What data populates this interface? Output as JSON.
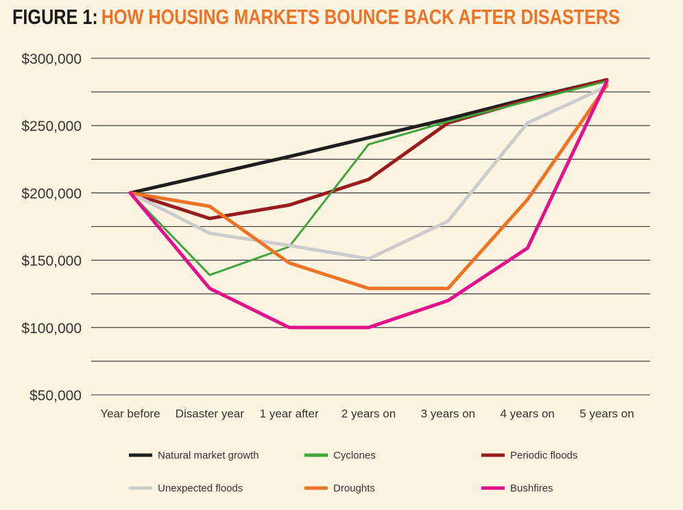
{
  "figure_label": "FIGURE 1:",
  "title": "HOW HOUSING MARKETS BOUNCE BACK AFTER DISASTERS",
  "colors": {
    "background": "#fdf3e1",
    "title_label": "#1a1a1a",
    "title_accent": "#ee7326",
    "gridline": "#2b2b2b",
    "tick_text": "#333333"
  },
  "chart_data": {
    "type": "line",
    "title": "HOW HOUSING MARKETS BOUNCE BACK AFTER DISASTERS",
    "xlabel": "",
    "ylabel": "",
    "categories": [
      "Year before",
      "Disaster year",
      "1 year after",
      "2 years on",
      "3 years on",
      "4 years on",
      "5 years on"
    ],
    "y_ticks": [
      {
        "value": 50000,
        "label": "$50,000"
      },
      {
        "value": 100000,
        "label": "$100,000"
      },
      {
        "value": 150000,
        "label": "$150,000"
      },
      {
        "value": 200000,
        "label": "$200,000"
      },
      {
        "value": 250000,
        "label": "$250,000"
      },
      {
        "value": 300000,
        "label": "$300,000"
      }
    ],
    "ylim": [
      50000,
      300000
    ],
    "grid": "horizontal",
    "legend_position": "bottom",
    "series": [
      {
        "name": "Natural market growth",
        "color": "#1e1e1e",
        "width": 5,
        "values": [
          200000,
          213500,
          227000,
          241000,
          255000,
          270000,
          284000
        ]
      },
      {
        "name": "Periodic floods",
        "color": "#981b1e",
        "width": 5,
        "values": [
          200000,
          181000,
          191000,
          210000,
          252000,
          269000,
          284000
        ]
      },
      {
        "name": "Cyclones",
        "color": "#3fa43b",
        "width": 3,
        "values": [
          200000,
          139000,
          160000,
          236000,
          253000,
          268000,
          283000
        ]
      },
      {
        "name": "Unexpected floods",
        "color": "#cccccc",
        "width": 5,
        "values": [
          200000,
          170000,
          161000,
          151000,
          179000,
          252000,
          279000
        ]
      },
      {
        "name": "Droughts",
        "color": "#ee7326",
        "width": 5,
        "values": [
          200000,
          190000,
          148000,
          129000,
          129000,
          195000,
          280000
        ]
      },
      {
        "name": "Bushfires",
        "color": "#e3108c",
        "width": 5,
        "values": [
          200000,
          129000,
          100000,
          100000,
          120000,
          159000,
          283000
        ]
      }
    ],
    "legend_rows": [
      [
        "Natural market growth",
        "Cyclones",
        "Periodic floods"
      ],
      [
        "Unexpected floods",
        "Droughts",
        "Bushfires"
      ]
    ]
  }
}
